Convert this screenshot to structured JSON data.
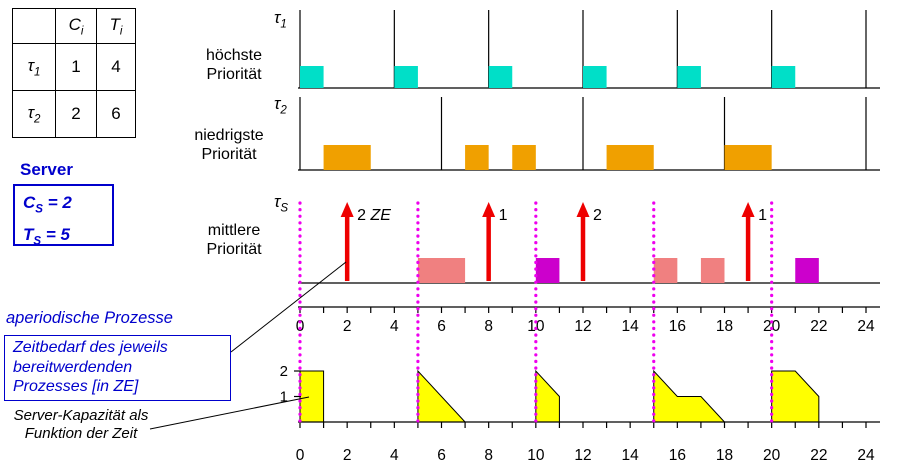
{
  "task_table": {
    "header": {
      "c": {
        "base": "C",
        "sub": "i"
      },
      "t": {
        "base": "T",
        "sub": "i"
      }
    },
    "rows": [
      {
        "name": {
          "base": "τ",
          "sub": "1"
        },
        "c": "1",
        "t": "4"
      },
      {
        "name": {
          "base": "τ",
          "sub": "2"
        },
        "c": "2",
        "t": "6"
      }
    ]
  },
  "server": {
    "title": "Server",
    "capacity": {
      "base": "C",
      "sub": "S",
      "rest": " = 2"
    },
    "period": {
      "base": "T",
      "sub": "S",
      "rest": " = 5"
    }
  },
  "annotations": {
    "aperiodic_label": "aperiodische Prozesse",
    "demand_note": "Zeitbedarf des jeweils\nbereitwerdenden\nProzesses [in ZE]",
    "capacity_note": "Server-Kapazität als\nFunktion der Zeit"
  },
  "timelines": {
    "tau1": {
      "symbol": {
        "base": "τ",
        "sub": "1"
      },
      "priority": "höchste\nPriorität"
    },
    "tau2": {
      "symbol": {
        "base": "τ",
        "sub": "2"
      },
      "priority": "niedrigste\nPriorität"
    },
    "server": {
      "symbol": {
        "base": "τ",
        "sub": "S"
      },
      "priority": "mittlere\nPriorität"
    }
  },
  "colors": {
    "accent_blue": "#0000CC",
    "tau1_fill": "#00DFC8",
    "tau2_fill": "#F0A000",
    "server_fill_a": "#F08080",
    "server_fill_b": "#CC00CC",
    "arrival_red": "#EE0000",
    "replenish_magenta": "#EE00EE",
    "capacity_yellow": "#FFFF00"
  },
  "chart_data": {
    "type": "timing-diagram",
    "time_axis": {
      "min": 0,
      "max": 24,
      "tick_step": 1,
      "label_step": 2
    },
    "tau1": {
      "C": 1,
      "T": 4,
      "releases": [
        0,
        4,
        8,
        12,
        16,
        20,
        24
      ],
      "executions": [
        [
          0,
          1
        ],
        [
          4,
          5
        ],
        [
          8,
          9
        ],
        [
          12,
          13
        ],
        [
          16,
          17
        ],
        [
          20,
          21
        ]
      ]
    },
    "tau2": {
      "C": 2,
      "T": 6,
      "releases": [
        0,
        6,
        12,
        18,
        24
      ],
      "executions": [
        [
          1,
          3
        ],
        [
          7,
          8
        ],
        [
          9,
          10
        ],
        [
          13,
          15
        ],
        [
          18,
          20
        ]
      ]
    },
    "server": {
      "Cs": 2,
      "Ts": 5,
      "replenishments": [
        0,
        5,
        10,
        15,
        20
      ],
      "arrivals": [
        {
          "t": 2,
          "amount": "2",
          "unit": "ZE"
        },
        {
          "t": 8,
          "amount": "1",
          "unit": ""
        },
        {
          "t": 12,
          "amount": "2",
          "unit": ""
        },
        {
          "t": 19,
          "amount": "1",
          "unit": ""
        }
      ],
      "executions": [
        {
          "start": 5,
          "end": 7,
          "fill": "a"
        },
        {
          "start": 10,
          "end": 11,
          "fill": "b"
        },
        {
          "start": 15,
          "end": 16,
          "fill": "a"
        },
        {
          "start": 17,
          "end": 18,
          "fill": "a"
        },
        {
          "start": 21,
          "end": 22,
          "fill": "b"
        }
      ],
      "capacity_profile": [
        [
          [
            0,
            0
          ],
          [
            0,
            2
          ],
          [
            1,
            2
          ],
          [
            1,
            0
          ]
        ],
        [
          [
            5,
            0
          ],
          [
            5,
            2
          ],
          [
            7,
            0
          ]
        ],
        [
          [
            10,
            0
          ],
          [
            10,
            2
          ],
          [
            11,
            1
          ],
          [
            11,
            0
          ]
        ],
        [
          [
            15,
            0
          ],
          [
            15,
            2
          ],
          [
            16,
            1
          ],
          [
            17,
            1
          ],
          [
            18,
            0
          ]
        ],
        [
          [
            20,
            0
          ],
          [
            20,
            2
          ],
          [
            21,
            2
          ],
          [
            22,
            1
          ],
          [
            22,
            0
          ]
        ]
      ],
      "capacity_axis_labels": [
        "1",
        "2"
      ]
    }
  }
}
